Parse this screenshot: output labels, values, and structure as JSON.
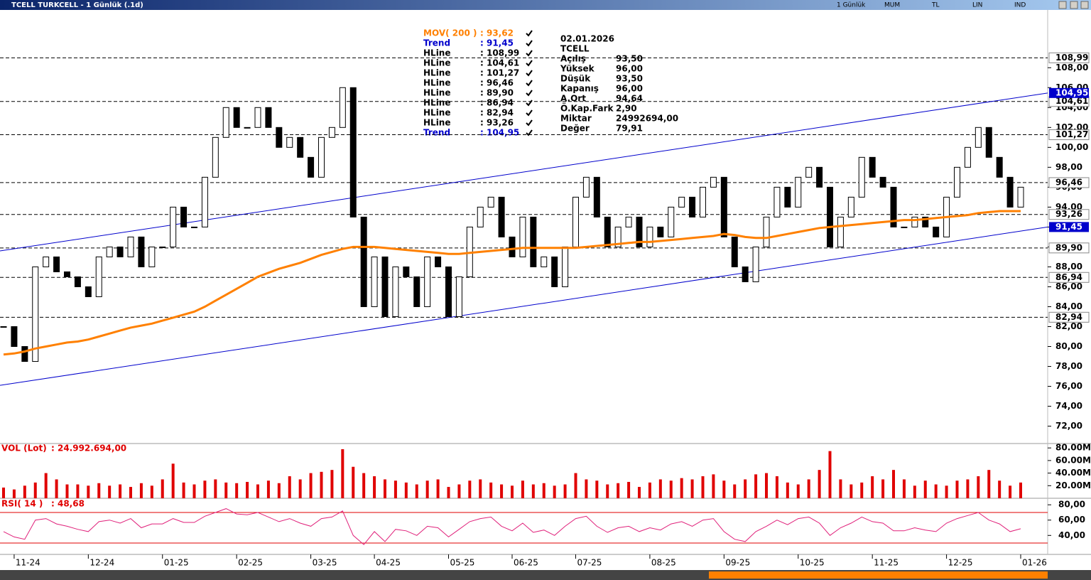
{
  "window": {
    "title": "TCELL TURKCELL - 1 Günlük (.1d)",
    "toolbar": [
      "1 Günlük",
      "MUM",
      "TL",
      "LIN",
      "IND"
    ]
  },
  "info": {
    "date": "02.01.2026",
    "symbol": "TCELL",
    "rows": [
      {
        "label": "Açılış",
        "value": "93,50"
      },
      {
        "label": "Yüksek",
        "value": "96,00"
      },
      {
        "label": "Düşük",
        "value": "93,50"
      },
      {
        "label": "Kapanış",
        "value": "96,00"
      },
      {
        "label": "A.Ort",
        "value": "94,64"
      },
      {
        "label": "Ö.Kap.Fark",
        "value": "2,90"
      },
      {
        "label": "Miktar",
        "value": "24992694,00"
      },
      {
        "label": "Değer",
        "value": "79,91"
      }
    ]
  },
  "chart_data": [
    {
      "type": "candlestick",
      "up_color": "#ffffff",
      "down_color": "#000000",
      "categories": [
        null,
        "11-24",
        null,
        null,
        null,
        null,
        null,
        null,
        "12-24",
        null,
        null,
        null,
        null,
        null,
        null,
        "01-25",
        null,
        null,
        null,
        null,
        null,
        null,
        "02-25",
        null,
        null,
        null,
        null,
        null,
        null,
        "03-25",
        null,
        null,
        null,
        null,
        null,
        "04-25",
        null,
        null,
        null,
        null,
        null,
        null,
        "05-25",
        null,
        null,
        null,
        null,
        null,
        "06-25",
        null,
        null,
        null,
        null,
        null,
        "07-25",
        null,
        null,
        null,
        null,
        null,
        null,
        "08-25",
        null,
        null,
        null,
        null,
        null,
        null,
        "09-25",
        null,
        null,
        null,
        null,
        null,
        null,
        "10-25",
        null,
        null,
        null,
        null,
        null,
        null,
        "11-25",
        null,
        null,
        null,
        null,
        null,
        null,
        "12-25",
        null,
        null,
        null,
        null,
        null,
        null,
        "01-26"
      ],
      "close": [
        82,
        80,
        78.5,
        88,
        89,
        87.5,
        87,
        86,
        85,
        89,
        90,
        89,
        91,
        88,
        90,
        90,
        94,
        92,
        92,
        97,
        101,
        104,
        102,
        102,
        104,
        102,
        100,
        101,
        99,
        97,
        101,
        102,
        106,
        93,
        84,
        89,
        83,
        88,
        87,
        84,
        89,
        88,
        83,
        87,
        92,
        94,
        95,
        91,
        89,
        93,
        88,
        89,
        86,
        90,
        95,
        97,
        93,
        90,
        92,
        93,
        90,
        92,
        91,
        94,
        95,
        93,
        96,
        97,
        91,
        88,
        86.5,
        90,
        93,
        96,
        94,
        97,
        98,
        96,
        90,
        93,
        95,
        99,
        97,
        96,
        92,
        92,
        93,
        92,
        91,
        95,
        98,
        100,
        102,
        99,
        97,
        94,
        96
      ],
      "ma": {
        "color": "#ff8000",
        "values": [
          79.2,
          79.3,
          79.5,
          79.8,
          80.0,
          80.2,
          80.4,
          80.5,
          80.7,
          81.0,
          81.3,
          81.6,
          81.9,
          82.1,
          82.3,
          82.6,
          82.9,
          83.2,
          83.5,
          84.0,
          84.6,
          85.2,
          85.8,
          86.4,
          87.0,
          87.4,
          87.8,
          88.1,
          88.4,
          88.8,
          89.2,
          89.5,
          89.8,
          90.0,
          90.0,
          90.0,
          89.9,
          89.8,
          89.7,
          89.6,
          89.5,
          89.4,
          89.3,
          89.3,
          89.4,
          89.5,
          89.6,
          89.7,
          89.8,
          89.9,
          89.9,
          89.9,
          89.9,
          89.9,
          89.9,
          90.0,
          90.1,
          90.2,
          90.3,
          90.4,
          90.5,
          90.5,
          90.6,
          90.7,
          90.8,
          90.9,
          91.0,
          91.1,
          91.3,
          91.2,
          91.0,
          90.9,
          90.9,
          91.1,
          91.3,
          91.5,
          91.7,
          91.9,
          92.0,
          92.1,
          92.2,
          92.3,
          92.4,
          92.5,
          92.6,
          92.7,
          92.7,
          92.8,
          92.9,
          93.0,
          93.1,
          93.2,
          93.4,
          93.5,
          93.6,
          93.6,
          93.6
        ]
      },
      "ylim": [
        70.4,
        113.8
      ],
      "yticks": [
        {
          "value": 72,
          "label": "72,00"
        },
        {
          "value": 74,
          "label": "74,00"
        },
        {
          "value": 76,
          "label": "76,00"
        },
        {
          "value": 78,
          "label": "78,00"
        },
        {
          "value": 80,
          "label": "80,00"
        },
        {
          "value": 82,
          "label": "82,00"
        },
        {
          "value": 84,
          "label": "84,00"
        },
        {
          "value": 86,
          "label": "86,00"
        },
        {
          "value": 88,
          "label": "88,00"
        },
        {
          "value": 90,
          "label": "90,00"
        },
        {
          "value": 92,
          "label": "92,00"
        },
        {
          "value": 94,
          "label": "94,00"
        },
        {
          "value": 96,
          "label": "96,00"
        },
        {
          "value": 98,
          "label": "98,00"
        },
        {
          "value": 100,
          "label": "100,00"
        },
        {
          "value": 102,
          "label": "102,00"
        },
        {
          "value": 104,
          "label": "104,00"
        },
        {
          "value": 106,
          "label": "106,00"
        },
        {
          "value": 108,
          "label": "108,00"
        }
      ],
      "hlines": [
        {
          "value": 108.99,
          "label": "108,99"
        },
        {
          "value": 104.61,
          "label": "104,61"
        },
        {
          "value": 101.27,
          "label": "101,27"
        },
        {
          "value": 96.46,
          "label": "96,46"
        },
        {
          "value": 89.9,
          "label": "89,90"
        },
        {
          "value": 86.94,
          "label": "86,94"
        },
        {
          "value": 82.94,
          "label": "82,94"
        },
        {
          "value": 93.26,
          "label": "93,26"
        }
      ],
      "trend_lines": [
        {
          "color": "#0000cc",
          "values": [
            89.6,
            105.46
          ],
          "label": "104,95"
        },
        {
          "color": "#0000cc",
          "values": [
            76.1,
            92.0
          ],
          "label": "91,45"
        }
      ],
      "legend": [
        {
          "name": "MOV( 200 )",
          "value": ": 93,62",
          "color": "#ff8000"
        },
        {
          "name": "Trend",
          "value": ": 91,45",
          "color": "#0000cc"
        },
        {
          "name": "HLine",
          "value": ": 108,99",
          "color": "#000000"
        },
        {
          "name": "HLine",
          "value": ": 104,61",
          "color": "#000000"
        },
        {
          "name": "HLine",
          "value": ": 101,27",
          "color": "#000000"
        },
        {
          "name": "HLine",
          "value": ": 96,46",
          "color": "#000000"
        },
        {
          "name": "HLine",
          "value": ": 89,90",
          "color": "#000000"
        },
        {
          "name": "HLine",
          "value": ": 86,94",
          "color": "#000000"
        },
        {
          "name": "HLine",
          "value": ": 82,94",
          "color": "#000000"
        },
        {
          "name": "HLine",
          "value": ": 93,26",
          "color": "#000000"
        },
        {
          "name": "Trend",
          "value": ": 104,95",
          "color": "#0000cc"
        }
      ]
    },
    {
      "type": "volume",
      "name": "VOL (Lot)",
      "value_text": ": 24.992.694,00",
      "color": "#e00000",
      "values": [
        17000000.0,
        14000000.0,
        20000000.0,
        25000000.0,
        40000000.0,
        30000000.0,
        22000000.0,
        22000000.0,
        20000000.0,
        24000000.0,
        20000000.0,
        22000000.0,
        18000000.0,
        24000000.0,
        20000000.0,
        30000000.0,
        55000000.0,
        25000000.0,
        22000000.0,
        28000000.0,
        30000000.0,
        25000000.0,
        24000000.0,
        26000000.0,
        22000000.0,
        28000000.0,
        24000000.0,
        35000000.0,
        30000000.0,
        40000000.0,
        42000000.0,
        45000000.0,
        78000000.0,
        50000000.0,
        40000000.0,
        35000000.0,
        30000000.0,
        28000000.0,
        25000000.0,
        22000000.0,
        28000000.0,
        30000000.0,
        18000000.0,
        22000000.0,
        28000000.0,
        30000000.0,
        25000000.0,
        22000000.0,
        20000000.0,
        28000000.0,
        22000000.0,
        24000000.0,
        20000000.0,
        22000000.0,
        40000000.0,
        30000000.0,
        28000000.0,
        22000000.0,
        24000000.0,
        26000000.0,
        18000000.0,
        25000000.0,
        30000000.0,
        28000000.0,
        32000000.0,
        30000000.0,
        35000000.0,
        38000000.0,
        28000000.0,
        22000000.0,
        30000000.0,
        38000000.0,
        40000000.0,
        35000000.0,
        25000000.0,
        22000000.0,
        30000000.0,
        45000000.0,
        75000000.0,
        30000000.0,
        22000000.0,
        25000000.0,
        35000000.0,
        30000000.0,
        45000000.0,
        30000000.0,
        20000000.0,
        28000000.0,
        22000000.0,
        20000000.0,
        28000000.0,
        30000000.0,
        35000000.0,
        45000000.0,
        28000000.0,
        20000000.0,
        24992694
      ],
      "ylim": [
        0,
        87000000.0
      ],
      "yticks": [
        {
          "value": 20000000.0,
          "label": "20.00M"
        },
        {
          "value": 40000000.0,
          "label": "40.00M"
        },
        {
          "value": 60000000.0,
          "label": "60.00M"
        },
        {
          "value": 80000000.0,
          "label": "80.00M"
        }
      ]
    },
    {
      "type": "rsi",
      "name": "RSI( 14 )",
      "value_text": ": 48,68",
      "color": "#e0207a",
      "level_color": "#e00000",
      "levels": [
        70,
        30
      ],
      "values": [
        45,
        38,
        35,
        60,
        62,
        55,
        52,
        48,
        45,
        58,
        60,
        56,
        62,
        50,
        55,
        55,
        62,
        57,
        57,
        65,
        70,
        75,
        68,
        67,
        70,
        64,
        58,
        62,
        56,
        52,
        62,
        64,
        72,
        40,
        28,
        45,
        32,
        48,
        46,
        40,
        52,
        50,
        38,
        48,
        58,
        62,
        64,
        52,
        46,
        56,
        44,
        47,
        40,
        52,
        62,
        65,
        52,
        44,
        50,
        52,
        45,
        50,
        47,
        55,
        58,
        52,
        60,
        62,
        45,
        35,
        32,
        45,
        52,
        60,
        54,
        62,
        64,
        56,
        40,
        50,
        56,
        64,
        58,
        56,
        46,
        46,
        50,
        47,
        45,
        56,
        62,
        66,
        70,
        60,
        55,
        45,
        48.68
      ],
      "ylim": [
        15.2,
        87.6
      ],
      "yticks": [
        {
          "value": 40,
          "label": "40,00"
        },
        {
          "value": 60,
          "label": "60,00"
        },
        {
          "value": 80,
          "label": "80,00"
        }
      ]
    }
  ]
}
